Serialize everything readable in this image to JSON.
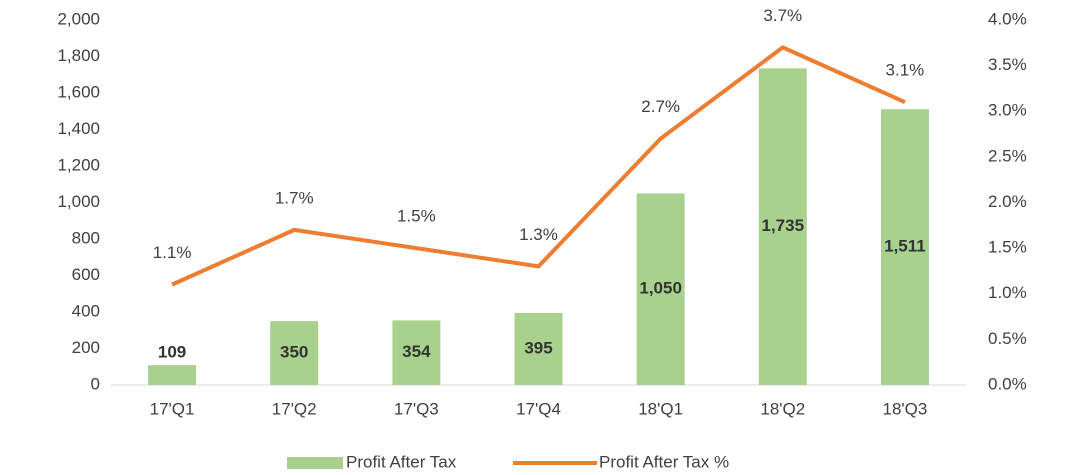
{
  "chart_data": {
    "type": "bar-line",
    "categories": [
      "17'Q1",
      "17'Q2",
      "17'Q3",
      "17'Q4",
      "18'Q1",
      "18'Q2",
      "18'Q3"
    ],
    "series": [
      {
        "name": "Profit After Tax",
        "type": "bar",
        "color": "#a9d18e",
        "axis": "y",
        "values": [
          109,
          350,
          354,
          395,
          1050,
          1735,
          1511
        ],
        "value_labels": [
          "109",
          "350",
          "354",
          "395",
          "1,050",
          "1,735",
          "1,511"
        ]
      },
      {
        "name": "Profit After Tax %",
        "type": "line",
        "color": "#ed7d31",
        "axis": "y2",
        "values": [
          1.1,
          1.7,
          1.5,
          1.3,
          2.7,
          3.7,
          3.1
        ],
        "value_labels": [
          "1.1%",
          "1.7%",
          "1.5%",
          "1.3%",
          "2.7%",
          "3.7%",
          "3.1%"
        ]
      }
    ],
    "ylim": [
      0,
      2000
    ],
    "yticks": [
      0,
      200,
      400,
      600,
      800,
      {
        "value": 1000,
        "label": "1,000"
      },
      {
        "value": 1200,
        "label": "1,200"
      },
      {
        "value": 1400,
        "label": "1,400"
      },
      {
        "value": 1600,
        "label": "1,600"
      },
      {
        "value": 1800,
        "label": "1,800"
      },
      {
        "value": 2000,
        "label": "2,000"
      }
    ],
    "y2lim": [
      0,
      4
    ],
    "y2ticks": [
      {
        "value": 0,
        "label": "0.0%"
      },
      {
        "value": 0.5,
        "label": "0.5%"
      },
      {
        "value": 1,
        "label": "1.0%"
      },
      {
        "value": 1.5,
        "label": "1.5%"
      },
      {
        "value": 2,
        "label": "2.0%"
      },
      {
        "value": 2.5,
        "label": "2.5%"
      },
      {
        "value": 3,
        "label": "3.0%"
      },
      {
        "value": 3.5,
        "label": "3.5%"
      },
      {
        "value": 4,
        "label": "4.0%"
      }
    ],
    "legend": "bottom"
  }
}
